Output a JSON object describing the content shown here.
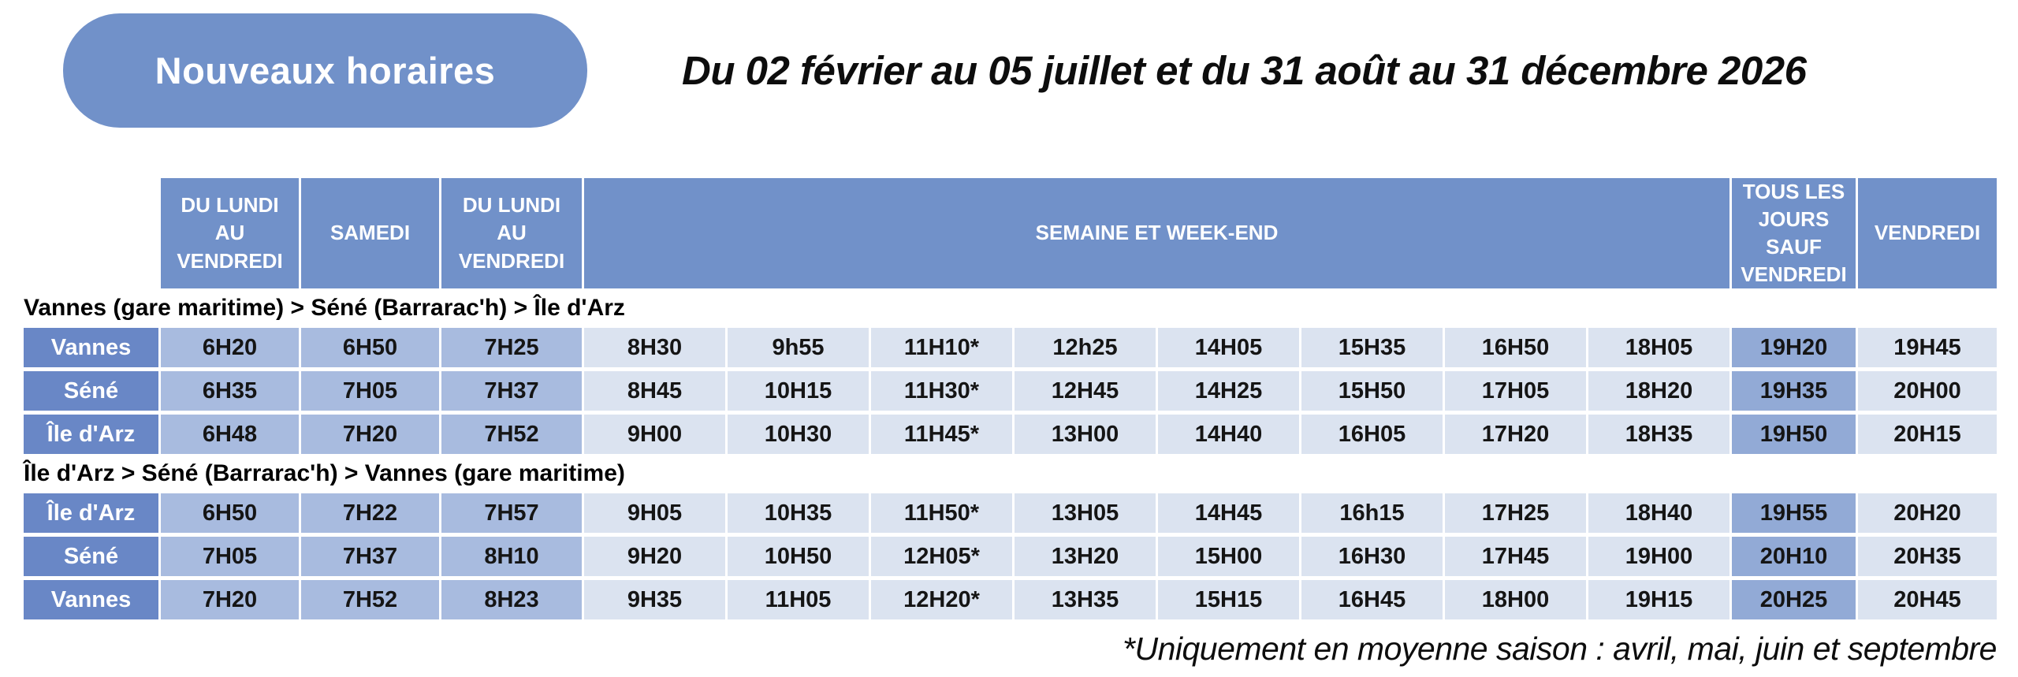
{
  "badge": {
    "label": "Nouveaux horaires"
  },
  "title": "Du 02 février au 05 juillet et du 31 août au 31 décembre 2026",
  "footnote": "*Uniquement en moyenne saison : avril, mai, juin et septembre",
  "colors": {
    "header_blue": "#7191C9",
    "station_blue": "#6987C6",
    "weekday_cell_blue": "#A8BBDF",
    "light_cell_blue": "#DBE3F0",
    "daily_except_friday_blue": "#92AAD6"
  },
  "table": {
    "headers": [
      {
        "label": "DU LUNDI\nAU\nVENDREDI",
        "span": 1
      },
      {
        "label": "SAMEDI",
        "span": 1
      },
      {
        "label": "DU LUNDI\nAU\nVENDREDI",
        "span": 1
      },
      {
        "label": "SEMAINE ET WEEK-END",
        "span": 8
      },
      {
        "label": "TOUS LES\nJOURS SAUF\nVENDREDI",
        "span": 1
      },
      {
        "label": "VENDREDI",
        "span": 1
      }
    ],
    "sections": [
      {
        "title": "Vannes (gare maritime) > Séné (Barrarac'h) > Île d'Arz",
        "rows": [
          {
            "station": "Vannes",
            "times": [
              "6H20",
              "6H50",
              "7H25",
              "8H30",
              "9h55",
              "11H10*",
              "12h25",
              "14H05",
              "15H35",
              "16H50",
              "18H05",
              "19H20",
              "19H45"
            ]
          },
          {
            "station": "Séné",
            "times": [
              "6H35",
              "7H05",
              "7H37",
              "8H45",
              "10H15",
              "11H30*",
              "12H45",
              "14H25",
              "15H50",
              "17H05",
              "18H20",
              "19H35",
              "20H00"
            ]
          },
          {
            "station": "Île d'Arz",
            "times": [
              "6H48",
              "7H20",
              "7H52",
              "9H00",
              "10H30",
              "11H45*",
              "13H00",
              "14H40",
              "16H05",
              "17H20",
              "18H35",
              "19H50",
              "20H15"
            ]
          }
        ]
      },
      {
        "title": "Île d'Arz > Séné (Barrarac'h) > Vannes (gare maritime)",
        "rows": [
          {
            "station": "Île d'Arz",
            "times": [
              "6H50",
              "7H22",
              "7H57",
              "9H05",
              "10H35",
              "11H50*",
              "13H05",
              "14H45",
              "16h15",
              "17H25",
              "18H40",
              "19H55",
              "20H20"
            ]
          },
          {
            "station": "Séné",
            "times": [
              "7H05",
              "7H37",
              "8H10",
              "9H20",
              "10H50",
              "12H05*",
              "13H20",
              "15H00",
              "16H30",
              "17H45",
              "19H00",
              "20H10",
              "20H35"
            ]
          },
          {
            "station": "Vannes",
            "times": [
              "7H20",
              "7H52",
              "8H23",
              "9H35",
              "11H05",
              "12H20*",
              "13H35",
              "15H15",
              "16H45",
              "18H00",
              "19H15",
              "20H25",
              "20H45"
            ]
          }
        ]
      }
    ]
  }
}
